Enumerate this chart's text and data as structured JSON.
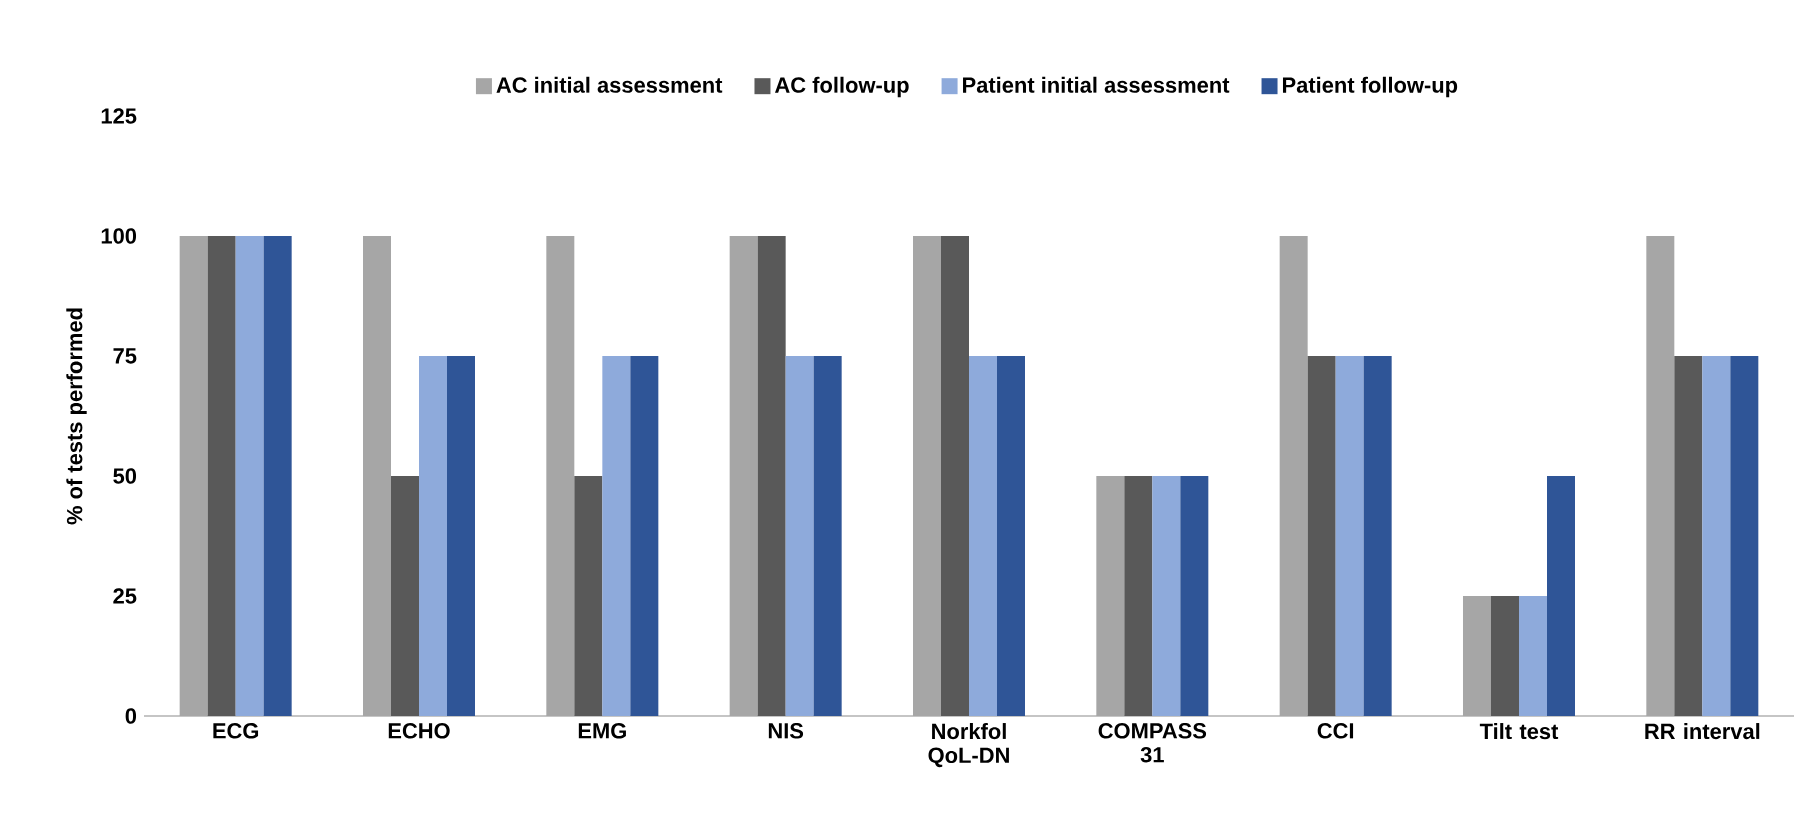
{
  "chart_data": {
    "type": "bar",
    "ylabel": "% of tests performed",
    "categories": [
      "ECG",
      "ECHO",
      "EMG",
      "NIS",
      "Norkfol QoL-DN",
      "COMPASS 31",
      "CCI",
      "Tilt test",
      "RR interval"
    ],
    "series": [
      {
        "name": "AC initial assessment",
        "color": "#a6a6a6",
        "values": [
          100,
          100,
          100,
          100,
          100,
          50,
          100,
          25,
          100
        ]
      },
      {
        "name": "AC follow-up",
        "color": "#595959",
        "values": [
          100,
          50,
          50,
          100,
          100,
          50,
          75,
          25,
          75
        ]
      },
      {
        "name": "Patient initial assessment",
        "color": "#8eaadb",
        "values": [
          100,
          75,
          75,
          75,
          75,
          50,
          75,
          25,
          75
        ]
      },
      {
        "name": "Patient follow-up",
        "color": "#2f5597",
        "values": [
          100,
          75,
          75,
          75,
          75,
          50,
          75,
          50,
          75
        ]
      }
    ],
    "ylim": [
      0,
      125
    ],
    "yticks": [
      0,
      25,
      50,
      75,
      100,
      125
    ],
    "legend": "top"
  }
}
